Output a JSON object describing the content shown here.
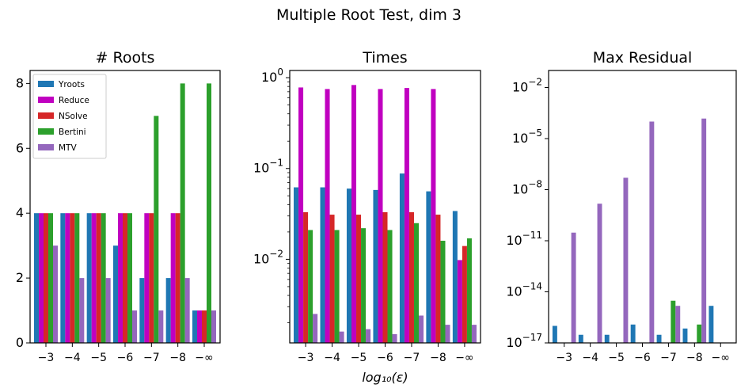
{
  "figure": {
    "suptitle": "Multiple Root Test, dim 3"
  },
  "colors": {
    "Yroots": "#1f77b4",
    "Reduce": "#c000c0",
    "NSolve": "#d62728",
    "Bertini": "#2ca02c",
    "MTV": "#9467bd"
  },
  "chart_data": [
    {
      "type": "bar",
      "title": "# Roots",
      "xlabel": "",
      "ylabel": "",
      "categories": [
        "−3",
        "−4",
        "−5",
        "−6",
        "−7",
        "−8",
        "−∞"
      ],
      "ylim": [
        0,
        8.4
      ],
      "yscale": "linear",
      "yticks": [
        0,
        2,
        4,
        6,
        8
      ],
      "yticklabels": [
        "0",
        "2",
        "4",
        "6",
        "8"
      ],
      "legend": "top-left",
      "series": [
        {
          "name": "Yroots",
          "values": [
            4,
            4,
            4,
            3,
            2,
            2,
            1
          ]
        },
        {
          "name": "Reduce",
          "values": [
            4,
            4,
            4,
            4,
            4,
            4,
            1
          ]
        },
        {
          "name": "NSolve",
          "values": [
            4,
            4,
            4,
            4,
            4,
            4,
            1
          ]
        },
        {
          "name": "Bertini",
          "values": [
            4,
            4,
            4,
            4,
            7,
            8,
            8
          ]
        },
        {
          "name": "MTV",
          "values": [
            3,
            2,
            2,
            1,
            1,
            2,
            1
          ]
        }
      ]
    },
    {
      "type": "bar",
      "title": "Times",
      "xlabel": "log₁₀(ε)",
      "ylabel": "",
      "categories": [
        "−3",
        "−4",
        "−5",
        "−6",
        "−7",
        "−8",
        "−∞"
      ],
      "ylim": [
        0.0012,
        1.2
      ],
      "yscale": "log",
      "yticks": [
        0.01,
        0.1,
        1
      ],
      "yticklabels": [
        {
          "base": "10",
          "exp": "−2"
        },
        {
          "base": "10",
          "exp": "−1"
        },
        {
          "base": "10",
          "exp": "0"
        }
      ],
      "series": [
        {
          "name": "Yroots",
          "values": [
            0.062,
            0.062,
            0.06,
            0.058,
            0.088,
            0.056,
            0.034
          ]
        },
        {
          "name": "Reduce",
          "values": [
            0.78,
            0.75,
            0.83,
            0.75,
            0.77,
            0.75,
            0.0098
          ]
        },
        {
          "name": "NSolve",
          "values": [
            0.033,
            0.031,
            0.031,
            0.033,
            0.033,
            0.031,
            0.014
          ]
        },
        {
          "name": "Bertini",
          "values": [
            0.021,
            0.021,
            0.022,
            0.021,
            0.025,
            0.016,
            0.017
          ]
        },
        {
          "name": "MTV",
          "values": [
            0.0025,
            0.0016,
            0.0017,
            0.0015,
            0.0024,
            0.0019,
            0.0019
          ]
        }
      ]
    },
    {
      "type": "bar",
      "title": "Max Residual",
      "xlabel": "",
      "ylabel": "",
      "categories": [
        "−3",
        "−4",
        "−5",
        "−6",
        "−7",
        "−8",
        "−∞"
      ],
      "ylim": [
        1e-17,
        0.1
      ],
      "yscale": "log",
      "yticks": [
        1e-17,
        1e-14,
        1e-11,
        1e-08,
        1e-05,
        0.01
      ],
      "yticklabels": [
        {
          "base": "10",
          "exp": "−17"
        },
        {
          "base": "10",
          "exp": "−14"
        },
        {
          "base": "10",
          "exp": "−11"
        },
        {
          "base": "10",
          "exp": "−8"
        },
        {
          "base": "10",
          "exp": "−5"
        },
        {
          "base": "10",
          "exp": "−2"
        }
      ],
      "series": [
        {
          "name": "Yroots",
          "values": [
            1e-16,
            3e-17,
            3e-17,
            1.2e-16,
            3e-17,
            7e-17,
            1.5e-15
          ]
        },
        {
          "name": "Reduce",
          "values": [
            null,
            null,
            null,
            null,
            null,
            null,
            null
          ]
        },
        {
          "name": "NSolve",
          "values": [
            null,
            null,
            null,
            null,
            null,
            null,
            null
          ]
        },
        {
          "name": "Bertini",
          "values": [
            null,
            null,
            null,
            null,
            3e-15,
            1.2e-16,
            null
          ]
        },
        {
          "name": "MTV",
          "values": [
            3e-11,
            1.5e-09,
            5e-08,
            0.0001,
            1.5e-15,
            0.00015,
            null
          ]
        }
      ]
    }
  ]
}
